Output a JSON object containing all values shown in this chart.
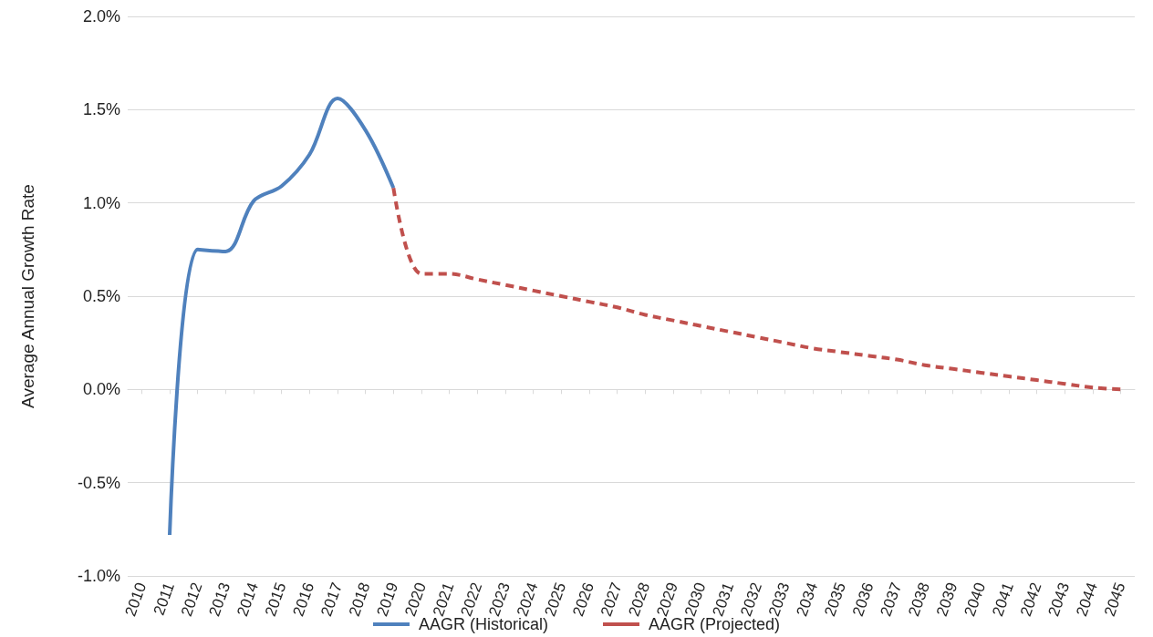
{
  "chart_data": {
    "type": "line",
    "ylabel": "Average Annual Growth Rate",
    "categories": [
      "2010",
      "2011",
      "2012",
      "2013",
      "2014",
      "2015",
      "2016",
      "2017",
      "2018",
      "2019",
      "2020",
      "2021",
      "2022",
      "2023",
      "2024",
      "2025",
      "2026",
      "2027",
      "2028",
      "2029",
      "2030",
      "2031",
      "2032",
      "2033",
      "2034",
      "2035",
      "2036",
      "2037",
      "2038",
      "2039",
      "2040",
      "2041",
      "2042",
      "2043",
      "2044",
      "2045"
    ],
    "series": [
      {
        "name": "AAGR (Historical)",
        "color": "#4f81bd",
        "line_style": "solid",
        "values": [
          null,
          -0.78,
          0.75,
          0.74,
          1.01,
          1.09,
          1.26,
          1.56,
          1.39,
          1.08,
          null,
          null,
          null,
          null,
          null,
          null,
          null,
          null,
          null,
          null,
          null,
          null,
          null,
          null,
          null,
          null,
          null,
          null,
          null,
          null,
          null,
          null,
          null,
          null,
          null,
          null
        ]
      },
      {
        "name": "AAGR (Projected)",
        "color": "#c0504d",
        "line_style": "dashed",
        "values": [
          null,
          null,
          null,
          null,
          null,
          null,
          null,
          null,
          null,
          1.08,
          0.62,
          0.62,
          0.59,
          0.56,
          0.53,
          0.5,
          0.47,
          0.44,
          0.4,
          0.37,
          0.34,
          0.31,
          0.28,
          0.25,
          0.22,
          0.2,
          0.18,
          0.16,
          0.13,
          0.11,
          0.09,
          0.07,
          0.05,
          0.03,
          0.01,
          0.0
        ]
      }
    ],
    "ylim": [
      -1,
      2
    ],
    "yticks": [
      {
        "value": -1,
        "label": "-1.0%"
      },
      {
        "value": -0.5,
        "label": "-0.5%"
      },
      {
        "value": 0,
        "label": "0.0%"
      },
      {
        "value": 0.5,
        "label": "0.5%"
      },
      {
        "value": 1,
        "label": "1.0%"
      },
      {
        "value": 1.5,
        "label": "1.5%"
      },
      {
        "value": 2,
        "label": "2.0%"
      }
    ],
    "grid": "y",
    "legend": "bottom",
    "marker": "none"
  }
}
